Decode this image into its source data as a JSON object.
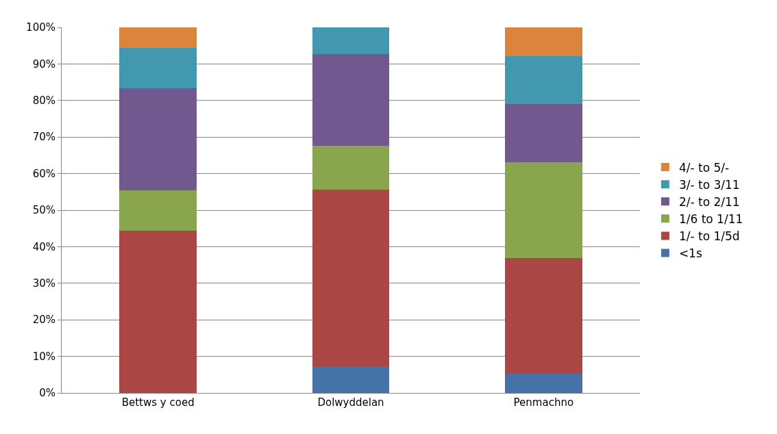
{
  "chart_data": {
    "type": "bar",
    "stacked": true,
    "categories": [
      "Bettws y coed",
      "Dolwyddelan",
      "Penmachno"
    ],
    "series": [
      {
        "name": "<1s",
        "color": "#4572a7",
        "values": [
          0,
          7.3,
          5.3
        ]
      },
      {
        "name": "1/- to 1/5d",
        "color": "#aa4643",
        "values": [
          44.4,
          48.3,
          31.6
        ]
      },
      {
        "name": "1/6 to 1/11",
        "color": "#89a54e",
        "values": [
          11.1,
          12.0,
          26.3
        ]
      },
      {
        "name": "2/- to 2/11",
        "color": "#71588f",
        "values": [
          27.8,
          25.1,
          15.8
        ]
      },
      {
        "name": "3/- to 3/11",
        "color": "#4198af",
        "values": [
          11.1,
          7.3,
          13.2
        ]
      },
      {
        "name": "4/- to 5/-",
        "color": "#db843d",
        "values": [
          5.6,
          0,
          7.9
        ]
      }
    ],
    "ylim": [
      0,
      100
    ],
    "yticks": [
      {
        "value": 0,
        "label": "0%"
      },
      {
        "value": 10,
        "label": "10%"
      },
      {
        "value": 20,
        "label": "20%"
      },
      {
        "value": 30,
        "label": "30%"
      },
      {
        "value": 40,
        "label": "40%"
      },
      {
        "value": 50,
        "label": "50%"
      },
      {
        "value": 60,
        "label": "60%"
      },
      {
        "value": 70,
        "label": "70%"
      },
      {
        "value": 80,
        "label": "80%"
      },
      {
        "value": 90,
        "label": "90%"
      },
      {
        "value": 100,
        "label": "100%"
      }
    ],
    "grid": "y",
    "legend": "right"
  }
}
